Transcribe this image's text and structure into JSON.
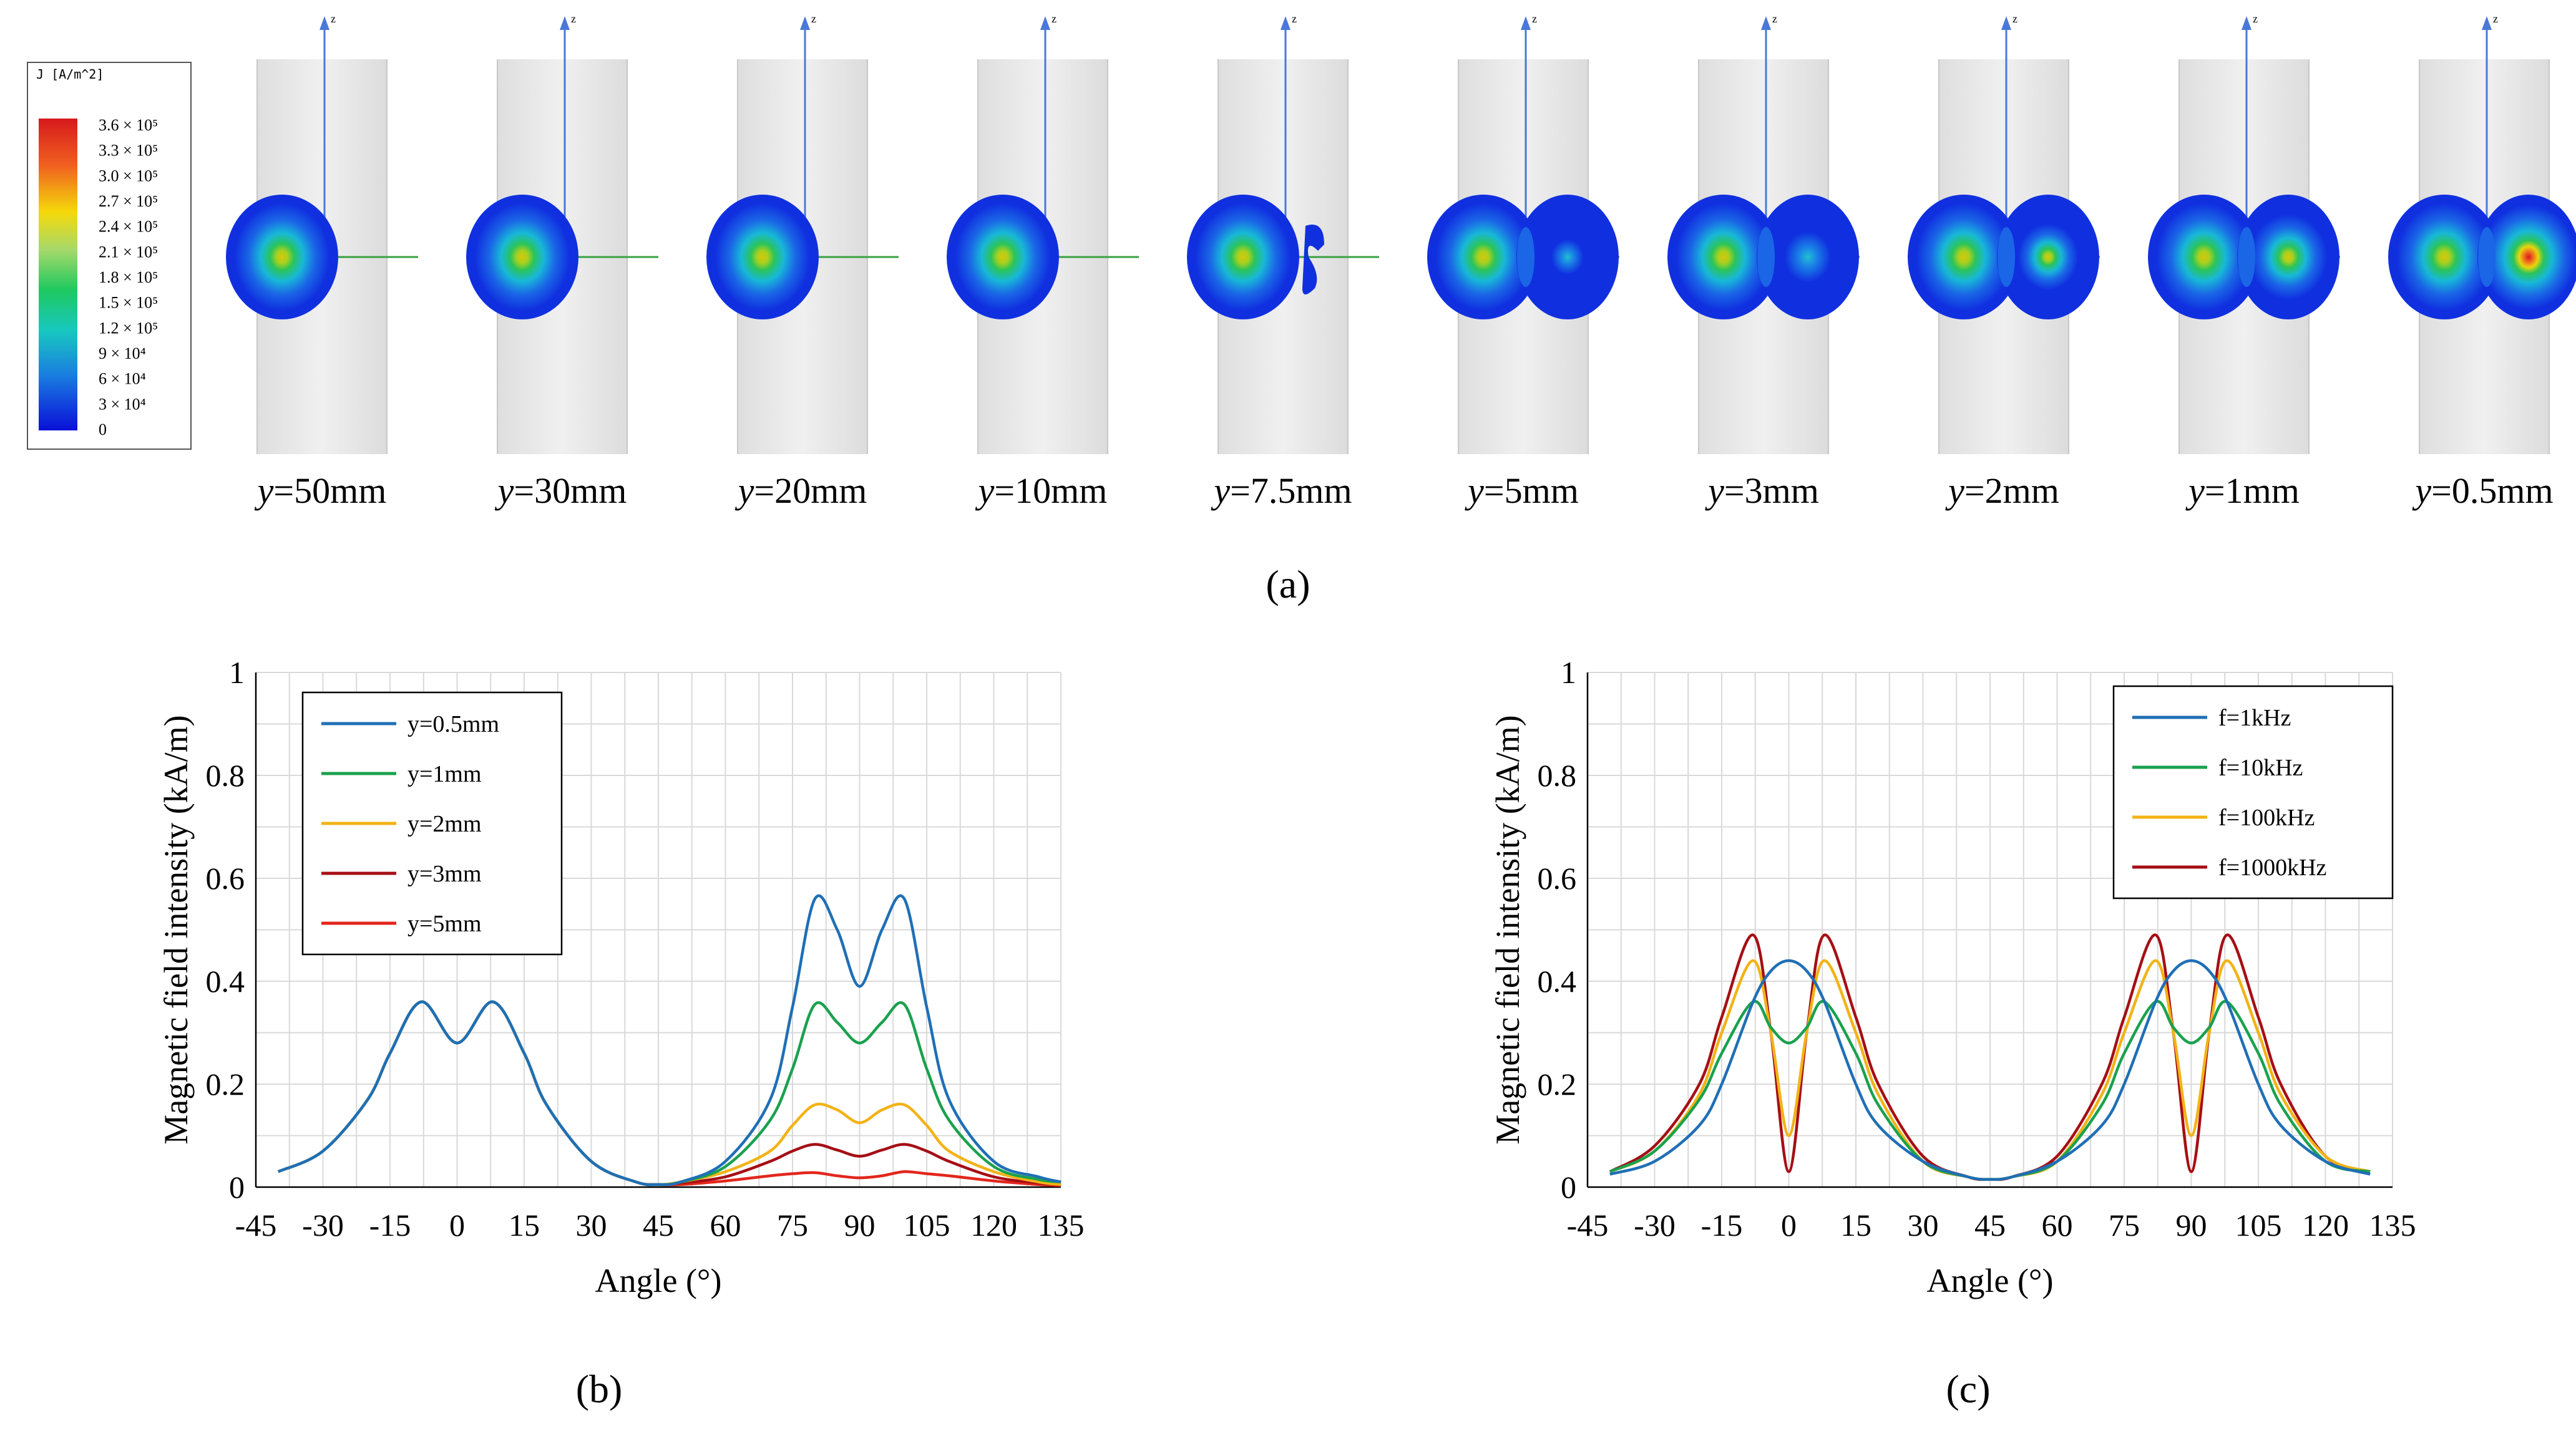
{
  "figure": {
    "panel_a_label": "(a)",
    "panel_b_label": "(b)",
    "panel_c_label": "(c)",
    "colorbar": {
      "title": "J [A/m^2]",
      "labels": [
        "3.6 × 10⁵",
        "3.3 × 10⁵",
        "3.0 × 10⁵",
        "2.7 × 10⁵",
        "2.4 × 10⁵",
        "2.1 × 10⁵",
        "1.8 × 10⁵",
        "1.5 × 10⁵",
        "1.2 × 10⁵",
        "9 × 10⁴",
        "6 × 10⁴",
        "3 × 10⁴",
        "0"
      ]
    },
    "slices": [
      {
        "label": "y=50mm",
        "second_lobe": 0,
        "second_peak": 0
      },
      {
        "label": "y=30mm",
        "second_lobe": 0,
        "second_peak": 0
      },
      {
        "label": "y=20mm",
        "second_lobe": 0,
        "second_peak": 0
      },
      {
        "label": "y=10mm",
        "second_lobe": 0,
        "second_peak": 0
      },
      {
        "label": "y=7.5mm",
        "second_lobe": 0.4,
        "second_peak": 0
      },
      {
        "label": "y=5mm",
        "second_lobe": 1,
        "second_peak": 0.1
      },
      {
        "label": "y=3mm",
        "second_lobe": 1,
        "second_peak": 0.3
      },
      {
        "label": "y=2mm",
        "second_lobe": 1,
        "second_peak": 0.5
      },
      {
        "label": "y=1mm",
        "second_lobe": 1,
        "second_peak": 0.75
      },
      {
        "label": "y=0.5mm",
        "second_lobe": 1,
        "second_peak": 1.0
      }
    ],
    "axis_marker": "z"
  },
  "chart_data": [
    {
      "id": "b",
      "type": "line",
      "xlabel": "Angle (°)",
      "ylabel": "Magnetic field intensity (kA/m)",
      "xlim": [
        -45,
        135
      ],
      "ylim": [
        0,
        1
      ],
      "xticks": [
        -45,
        -30,
        -15,
        0,
        15,
        30,
        45,
        60,
        75,
        90,
        105,
        120,
        135
      ],
      "yticks": [
        "0",
        "0.2",
        "0.4",
        "0.6",
        "0.8",
        "1"
      ],
      "grid": true,
      "legend": "top-left",
      "x": [
        -40,
        -30,
        -20,
        -15,
        -8,
        0,
        8,
        15,
        20,
        30,
        40,
        45,
        50,
        60,
        70,
        75,
        80,
        85,
        90,
        95,
        100,
        105,
        110,
        120,
        130,
        135
      ],
      "series": [
        {
          "name": "y=0.5mm",
          "color": "#1f6fb5",
          "values": [
            0.03,
            0.07,
            0.17,
            0.26,
            0.36,
            0.28,
            0.36,
            0.26,
            0.16,
            0.05,
            0.01,
            0.005,
            0.01,
            0.05,
            0.17,
            0.35,
            0.56,
            0.5,
            0.39,
            0.5,
            0.56,
            0.35,
            0.17,
            0.05,
            0.02,
            0.01
          ]
        },
        {
          "name": "y=1mm",
          "color": "#1aa14e",
          "values": [
            0.03,
            0.07,
            0.17,
            0.26,
            0.36,
            0.28,
            0.36,
            0.26,
            0.16,
            0.05,
            0.01,
            0.005,
            0.01,
            0.04,
            0.13,
            0.23,
            0.355,
            0.32,
            0.28,
            0.32,
            0.355,
            0.23,
            0.13,
            0.04,
            0.015,
            0.01
          ]
        },
        {
          "name": "y=2mm",
          "color": "#f2b316",
          "values": [
            0.03,
            0.07,
            0.17,
            0.26,
            0.36,
            0.28,
            0.36,
            0.26,
            0.16,
            0.05,
            0.01,
            0.005,
            0.01,
            0.03,
            0.07,
            0.12,
            0.16,
            0.15,
            0.125,
            0.15,
            0.16,
            0.12,
            0.07,
            0.03,
            0.01,
            0.005
          ]
        },
        {
          "name": "y=3mm",
          "color": "#a50f15",
          "values": [
            0.03,
            0.07,
            0.17,
            0.26,
            0.36,
            0.28,
            0.36,
            0.26,
            0.16,
            0.05,
            0.01,
            0.005,
            0.008,
            0.02,
            0.05,
            0.07,
            0.083,
            0.072,
            0.06,
            0.072,
            0.083,
            0.07,
            0.05,
            0.02,
            0.008,
            0.005
          ]
        },
        {
          "name": "y=5mm",
          "color": "#e3261c",
          "values": [
            0.03,
            0.07,
            0.17,
            0.26,
            0.36,
            0.28,
            0.36,
            0.26,
            0.16,
            0.05,
            0.01,
            0.005,
            0.005,
            0.012,
            0.022,
            0.026,
            0.028,
            0.022,
            0.018,
            0.022,
            0.03,
            0.026,
            0.022,
            0.012,
            0.005,
            0.003
          ]
        }
      ]
    },
    {
      "id": "c",
      "type": "line",
      "xlabel": "Angle (°)",
      "ylabel": "Magnetic field intensity (kA/m)",
      "xlim": [
        -45,
        135
      ],
      "ylim": [
        0,
        1
      ],
      "xticks": [
        -45,
        -30,
        -15,
        0,
        15,
        30,
        45,
        60,
        75,
        90,
        105,
        120,
        135
      ],
      "yticks": [
        "0",
        "0.2",
        "0.4",
        "0.6",
        "0.8",
        "1"
      ],
      "grid": true,
      "legend": "top-right",
      "x": [
        -40,
        -30,
        -20,
        -15,
        -8,
        -4,
        0,
        4,
        8,
        15,
        20,
        30,
        40,
        45,
        50,
        60,
        70,
        75,
        82,
        86,
        90,
        94,
        98,
        105,
        110,
        120,
        130
      ],
      "series": [
        {
          "name": "f=1kHz",
          "color": "#1f6fb5",
          "values": [
            0.025,
            0.05,
            0.12,
            0.2,
            0.36,
            0.42,
            0.44,
            0.42,
            0.36,
            0.2,
            0.12,
            0.05,
            0.02,
            0.015,
            0.02,
            0.05,
            0.12,
            0.2,
            0.36,
            0.42,
            0.44,
            0.42,
            0.36,
            0.2,
            0.12,
            0.05,
            0.025
          ]
        },
        {
          "name": "f=10kHz",
          "color": "#1aa14e",
          "values": [
            0.03,
            0.07,
            0.17,
            0.26,
            0.36,
            0.31,
            0.28,
            0.31,
            0.36,
            0.26,
            0.16,
            0.05,
            0.02,
            0.015,
            0.02,
            0.05,
            0.16,
            0.26,
            0.36,
            0.31,
            0.28,
            0.31,
            0.36,
            0.26,
            0.16,
            0.05,
            0.03
          ]
        },
        {
          "name": "f=100kHz",
          "color": "#f2b316",
          "values": [
            0.03,
            0.07,
            0.18,
            0.3,
            0.44,
            0.3,
            0.1,
            0.3,
            0.44,
            0.3,
            0.18,
            0.05,
            0.02,
            0.015,
            0.02,
            0.05,
            0.18,
            0.3,
            0.44,
            0.3,
            0.1,
            0.3,
            0.44,
            0.3,
            0.18,
            0.06,
            0.03
          ]
        },
        {
          "name": "f=1000kHz",
          "color": "#a50f15",
          "values": [
            0.03,
            0.08,
            0.2,
            0.33,
            0.49,
            0.3,
            0.03,
            0.3,
            0.49,
            0.33,
            0.2,
            0.06,
            0.02,
            0.015,
            0.02,
            0.06,
            0.2,
            0.33,
            0.49,
            0.3,
            0.03,
            0.3,
            0.49,
            0.33,
            0.2,
            0.06,
            0.03
          ]
        }
      ]
    }
  ]
}
